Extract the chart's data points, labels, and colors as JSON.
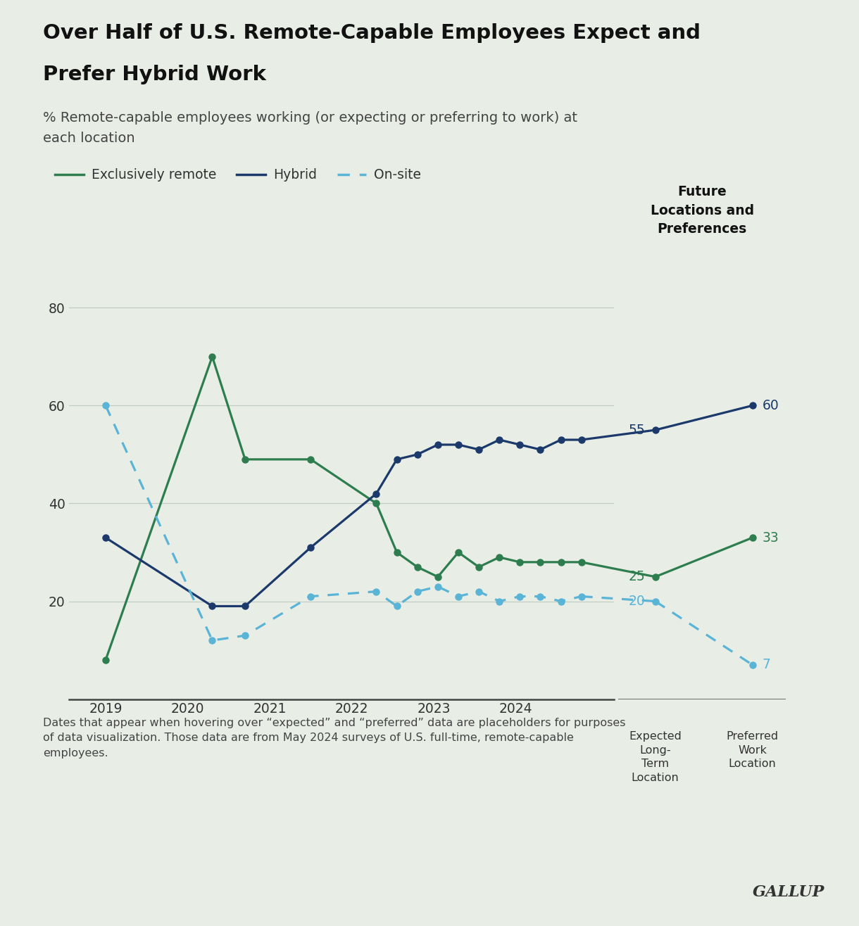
{
  "title_line1": "Over Half of U.S. Remote-Capable Employees Expect and",
  "title_line2": "Prefer Hybrid Work",
  "subtitle": "% Remote-capable employees working (or expecting or preferring to work) at\neach location",
  "bg_color": "#e8ede6",
  "plot_bg_color": "#e8ede6",
  "future_bg_color": "#d5ddd2",
  "remote_x": [
    2019.0,
    2020.3,
    2020.7,
    2021.5,
    2022.3,
    2022.55,
    2022.8,
    2023.05,
    2023.3,
    2023.55,
    2023.8,
    2024.05,
    2024.3,
    2024.55,
    2024.8
  ],
  "remote_y": [
    8,
    70,
    49,
    49,
    40,
    30,
    27,
    25,
    30,
    27,
    29,
    28,
    28,
    28,
    28
  ],
  "hybrid_x": [
    2019.0,
    2020.3,
    2020.7,
    2021.5,
    2022.3,
    2022.55,
    2022.8,
    2023.05,
    2023.3,
    2023.55,
    2023.8,
    2024.05,
    2024.3,
    2024.55,
    2024.8
  ],
  "hybrid_y": [
    33,
    19,
    19,
    31,
    42,
    49,
    50,
    52,
    52,
    51,
    53,
    52,
    51,
    53,
    53
  ],
  "onsite_x": [
    2019.0,
    2020.3,
    2020.7,
    2021.5,
    2022.3,
    2022.55,
    2022.8,
    2023.05,
    2023.3,
    2023.55,
    2023.8,
    2024.05,
    2024.3,
    2024.55,
    2024.8
  ],
  "onsite_y": [
    60,
    12,
    13,
    21,
    22,
    19,
    22,
    23,
    21,
    22,
    20,
    21,
    21,
    20,
    21
  ],
  "hybrid_expected": 55,
  "hybrid_preferred": 60,
  "remote_expected": 25,
  "remote_preferred": 33,
  "onsite_expected": 20,
  "onsite_preferred": 7,
  "hybrid_color": "#1b3a6b",
  "remote_color": "#2e7d4f",
  "onsite_color": "#5ab4d6",
  "yticks": [
    20,
    40,
    60,
    80
  ],
  "ylim": [
    0,
    88
  ],
  "xtick_labels": [
    "2019",
    "2020",
    "2021",
    "2022",
    "2023",
    "2024"
  ],
  "xtick_positions": [
    2019,
    2020,
    2021,
    2022,
    2023,
    2024
  ],
  "future_label": "Future\nLocations and\nPreferences",
  "expected_label": "Expected\nLong-\nTerm\nLocation",
  "preferred_label": "Preferred\nWork\nLocation",
  "footer": "Dates that appear when hovering over “expected” and “preferred” data are placeholders for purposes\nof data visualization. Those data are from May 2024 surveys of U.S. full-time, remote-capable\nemployees.",
  "gallup": "GALLUP"
}
